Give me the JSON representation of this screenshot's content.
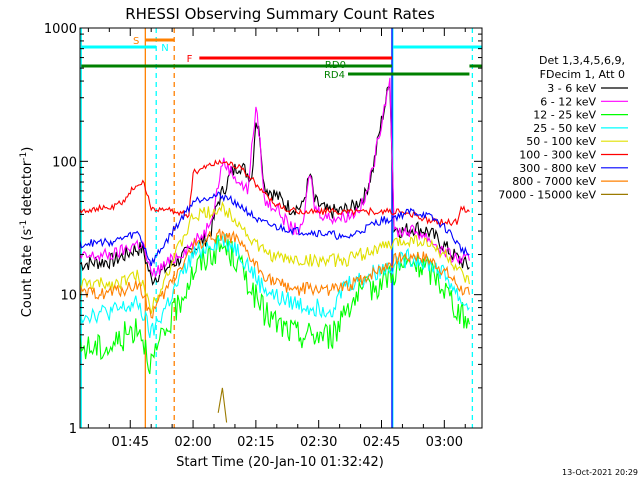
{
  "chart_data": {
    "type": "line",
    "title": "RHESSI Observing Summary Count Rates",
    "xlabel": "Start Time (20-Jan-10 01:32:42)",
    "ylabel_main": "Count Rate (s",
    "ylabel_sup1": "-1",
    "ylabel_mid": " detector",
    "ylabel_sup2": "-1",
    "ylabel_end": ")",
    "yscale": "log",
    "ylim": [
      1,
      1000
    ],
    "xlim_minutes": [
      93,
      189
    ],
    "x_ticks": [
      {
        "label": "01:45",
        "minutes": 105
      },
      {
        "label": "02:00",
        "minutes": 120
      },
      {
        "label": "02:15",
        "minutes": 135
      },
      {
        "label": "02:30",
        "minutes": 150
      },
      {
        "label": "02:45",
        "minutes": 165
      },
      {
        "label": "03:00",
        "minutes": 180
      }
    ],
    "y_ticks": [
      {
        "label": "1",
        "value": 1
      },
      {
        "label": "10",
        "value": 10
      },
      {
        "label": "100",
        "value": 100
      },
      {
        "label": "1000",
        "value": 1000
      }
    ],
    "legend": {
      "placement": "right",
      "header1": "Det 1,3,4,5,6,9,",
      "header2": "FDecim 1, Att 0"
    },
    "series": [
      {
        "name": "3 - 6 keV",
        "color": "#000000",
        "values": [
          [
            93,
            17
          ],
          [
            101,
            18
          ],
          [
            104,
            20
          ],
          [
            106,
            22
          ],
          [
            108,
            22
          ],
          [
            110,
            13
          ],
          [
            120,
            22
          ],
          [
            124,
            28
          ],
          [
            126,
            50
          ],
          [
            129,
            80
          ],
          [
            131,
            95
          ],
          [
            134,
            75
          ],
          [
            135,
            210
          ],
          [
            136,
            150
          ],
          [
            137,
            65
          ],
          [
            140,
            55
          ],
          [
            143,
            45
          ],
          [
            146,
            45
          ],
          [
            148,
            80
          ],
          [
            149,
            50
          ],
          [
            152,
            42
          ],
          [
            155,
            42
          ],
          [
            158,
            45
          ],
          [
            161,
            55
          ],
          [
            163,
            90
          ],
          [
            165,
            200
          ],
          [
            167,
            400
          ],
          [
            168,
            32
          ],
          [
            170,
            30
          ],
          [
            173,
            32
          ],
          [
            176,
            30
          ],
          [
            179,
            25
          ],
          [
            182,
            20
          ],
          [
            186,
            16
          ]
        ]
      },
      {
        "name": "6 - 12 keV",
        "color": "#ff00ff",
        "values": [
          [
            93,
            19
          ],
          [
            101,
            20
          ],
          [
            104,
            22
          ],
          [
            106,
            24
          ],
          [
            108,
            24
          ],
          [
            110,
            14
          ],
          [
            120,
            24
          ],
          [
            123,
            30
          ],
          [
            125,
            45
          ],
          [
            127,
            100
          ],
          [
            129,
            85
          ],
          [
            131,
            70
          ],
          [
            133,
            60
          ],
          [
            135,
            250
          ],
          [
            136,
            140
          ],
          [
            137,
            50
          ],
          [
            140,
            45
          ],
          [
            143,
            32
          ],
          [
            146,
            30
          ],
          [
            148,
            85
          ],
          [
            149,
            45
          ],
          [
            152,
            38
          ],
          [
            155,
            38
          ],
          [
            158,
            40
          ],
          [
            161,
            50
          ],
          [
            163,
            90
          ],
          [
            165,
            200
          ],
          [
            167,
            430
          ],
          [
            168,
            30
          ],
          [
            170,
            30
          ],
          [
            173,
            30
          ],
          [
            176,
            27
          ],
          [
            179,
            22
          ],
          [
            182,
            19
          ],
          [
            186,
            18
          ]
        ]
      },
      {
        "name": "12 - 25 keV",
        "color": "#00ff00",
        "values": [
          [
            93,
            4
          ],
          [
            100,
            4
          ],
          [
            104,
            5
          ],
          [
            107,
            6
          ],
          [
            110,
            3
          ],
          [
            120,
            15
          ],
          [
            124,
            20
          ],
          [
            127,
            23
          ],
          [
            130,
            19
          ],
          [
            133,
            13
          ],
          [
            136,
            8
          ],
          [
            140,
            6
          ],
          [
            145,
            5
          ],
          [
            150,
            5
          ],
          [
            154,
            5
          ],
          [
            156,
            8
          ],
          [
            160,
            10
          ],
          [
            164,
            12
          ],
          [
            168,
            15
          ],
          [
            172,
            17
          ],
          [
            175,
            16
          ],
          [
            178,
            14
          ],
          [
            181,
            10
          ],
          [
            184,
            7
          ],
          [
            186,
            6
          ]
        ]
      },
      {
        "name": "25 - 50 keV",
        "color": "#00ffff",
        "values": [
          [
            93,
            7
          ],
          [
            101,
            7.5
          ],
          [
            104,
            8
          ],
          [
            107,
            8.5
          ],
          [
            110,
            5
          ],
          [
            120,
            20
          ],
          [
            124,
            24
          ],
          [
            127,
            26
          ],
          [
            130,
            23
          ],
          [
            133,
            17
          ],
          [
            136,
            12
          ],
          [
            140,
            9.5
          ],
          [
            145,
            8.5
          ],
          [
            150,
            8
          ],
          [
            154,
            8
          ],
          [
            156,
            12
          ],
          [
            160,
            13
          ],
          [
            164,
            15
          ],
          [
            168,
            17
          ],
          [
            172,
            19
          ],
          [
            175,
            18
          ],
          [
            178,
            16
          ],
          [
            181,
            13
          ],
          [
            184,
            9
          ],
          [
            186,
            8
          ]
        ]
      },
      {
        "name": "50 - 100 keV",
        "color": "#e0e000",
        "values": [
          [
            93,
            12
          ],
          [
            101,
            12
          ],
          [
            104,
            13
          ],
          [
            107,
            14
          ],
          [
            110,
            8
          ],
          [
            120,
            38
          ],
          [
            124,
            42
          ],
          [
            127,
            44
          ],
          [
            130,
            38
          ],
          [
            133,
            28
          ],
          [
            136,
            22
          ],
          [
            140,
            19
          ],
          [
            145,
            18
          ],
          [
            150,
            18
          ],
          [
            154,
            18
          ],
          [
            156,
            18
          ],
          [
            160,
            20
          ],
          [
            164,
            22
          ],
          [
            168,
            24
          ],
          [
            172,
            26
          ],
          [
            175,
            25
          ],
          [
            178,
            22
          ],
          [
            181,
            19
          ],
          [
            184,
            14
          ],
          [
            186,
            12
          ]
        ]
      },
      {
        "name": "100 - 300 keV",
        "color": "#ff0000",
        "values": [
          [
            93,
            43
          ],
          [
            101,
            45
          ],
          [
            104,
            52
          ],
          [
            106,
            65
          ],
          [
            108,
            70
          ],
          [
            110,
            45
          ],
          [
            119,
            40
          ],
          [
            120,
            82
          ],
          [
            124,
            95
          ],
          [
            127,
            100
          ],
          [
            130,
            95
          ],
          [
            133,
            80
          ],
          [
            136,
            62
          ],
          [
            139,
            50
          ],
          [
            142,
            43
          ],
          [
            146,
            42
          ],
          [
            150,
            42
          ],
          [
            154,
            42
          ],
          [
            158,
            42
          ],
          [
            162,
            42
          ],
          [
            165,
            42
          ],
          [
            168,
            42
          ],
          [
            172,
            40
          ],
          [
            175,
            37
          ],
          [
            178,
            35
          ],
          [
            181,
            35
          ],
          [
            183,
            35
          ],
          [
            184,
            45
          ],
          [
            186,
            42
          ]
        ]
      },
      {
        "name": "300 - 800 keV",
        "color": "#0000ff",
        "values": [
          [
            93,
            24
          ],
          [
            101,
            25
          ],
          [
            104,
            27
          ],
          [
            107,
            29
          ],
          [
            110,
            17
          ],
          [
            120,
            50
          ],
          [
            124,
            55
          ],
          [
            127,
            55
          ],
          [
            130,
            50
          ],
          [
            133,
            42
          ],
          [
            136,
            35
          ],
          [
            140,
            32
          ],
          [
            145,
            30
          ],
          [
            150,
            29
          ],
          [
            154,
            28
          ],
          [
            156,
            26
          ],
          [
            160,
            30
          ],
          [
            164,
            35
          ],
          [
            168,
            38
          ],
          [
            172,
            42
          ],
          [
            175,
            40
          ],
          [
            178,
            36
          ],
          [
            181,
            30
          ],
          [
            184,
            22
          ],
          [
            186,
            20
          ]
        ]
      },
      {
        "name": "800 - 7000 keV",
        "color": "#ff8000",
        "values": [
          [
            93,
            10
          ],
          [
            101,
            10.5
          ],
          [
            104,
            11
          ],
          [
            107,
            12
          ],
          [
            110,
            7
          ],
          [
            120,
            23
          ],
          [
            124,
            27
          ],
          [
            127,
            28
          ],
          [
            130,
            26
          ],
          [
            133,
            20
          ],
          [
            136,
            15
          ],
          [
            140,
            12
          ],
          [
            145,
            11
          ],
          [
            150,
            11
          ],
          [
            154,
            11
          ],
          [
            156,
            11
          ],
          [
            160,
            13
          ],
          [
            164,
            15
          ],
          [
            168,
            18
          ],
          [
            172,
            20
          ],
          [
            175,
            19
          ],
          [
            178,
            17
          ],
          [
            181,
            14
          ],
          [
            184,
            11
          ],
          [
            186,
            10
          ]
        ]
      },
      {
        "name": "7000 - 15000 keV",
        "color": "#9b7a00",
        "values": [
          [
            126,
            1.3
          ],
          [
            127,
            2
          ],
          [
            128,
            1.1
          ]
        ]
      }
    ],
    "annotations": {
      "bars": [
        {
          "label": "S",
          "color": "#ff8000"
        },
        {
          "label": "N",
          "color": "#00ffff"
        },
        {
          "label": "F",
          "color": "#ff0000"
        },
        {
          "label": "RD0",
          "color": "#008000"
        },
        {
          "label": "RD4",
          "color": "#008000"
        }
      ],
      "vertical_lines": [
        {
          "name": "saa-start",
          "minutes": 108.6,
          "color": "#ff8000",
          "style": "solid"
        },
        {
          "name": "saa-end",
          "minutes": 115.5,
          "color": "#ff8000",
          "style": "dashed"
        },
        {
          "name": "night-1-end",
          "minutes": 111.2,
          "color": "#00ffff",
          "style": "dashed"
        },
        {
          "name": "night-start",
          "minutes": 93.3,
          "color": "#00ffff",
          "style": "solid"
        },
        {
          "name": "night-2-start",
          "minutes": 167.7,
          "color": "#00ffff",
          "style": "solid"
        },
        {
          "name": "attenuator",
          "minutes": 167.5,
          "color": "#0000ff",
          "style": "solid"
        },
        {
          "name": "night-2-end",
          "minutes": 186.7,
          "color": "#00ffff",
          "style": "dashed"
        }
      ]
    },
    "footer_date": "13-Oct-2021 20:29"
  }
}
